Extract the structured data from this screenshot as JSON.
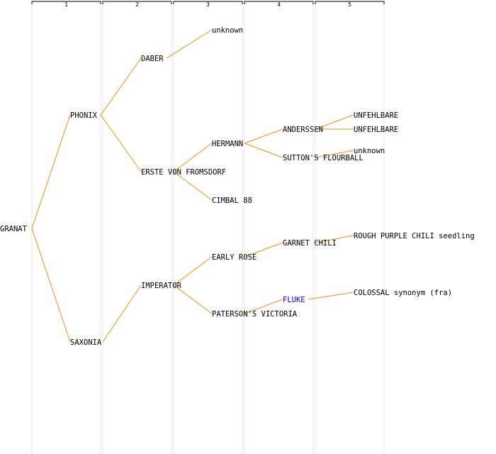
{
  "colors": {
    "edge": "#f08c1e",
    "text": "#000000",
    "highlight": "#0000cc",
    "guide": "#e6e6e6",
    "header_line": "#000000"
  },
  "generations": [
    "1",
    "2",
    "3",
    "4",
    "5"
  ],
  "pedigree": {
    "name": "GRANAT",
    "parents": [
      {
        "name": "PHONIX",
        "parents": [
          {
            "name": "DABER",
            "parents": [
              {
                "name": "unknown"
              }
            ]
          },
          {
            "name": "ERSTE VON FROMSDORF",
            "parents": [
              {
                "name": "HERMANN",
                "parents": [
                  {
                    "name": "ANDERSSEN",
                    "parents": [
                      {
                        "name": "UNFEHLBARE"
                      },
                      {
                        "name": "UNFEHLBARE"
                      }
                    ]
                  },
                  {
                    "name": "SUTTON'S FLOURBALL",
                    "parents": [
                      {
                        "name": "unknown"
                      }
                    ]
                  }
                ]
              },
              {
                "name": "CIMBAL 88"
              }
            ]
          }
        ]
      },
      {
        "name": "SAXONIA",
        "parents": [
          {
            "name": "IMPERATOR",
            "parents": [
              {
                "name": "EARLY ROSE",
                "parents": [
                  {
                    "name": "GARNET CHILI",
                    "parents": [
                      {
                        "name": "ROUGH PURPLE CHILI seedling"
                      }
                    ]
                  }
                ]
              },
              {
                "name": "PATERSON'S VICTORIA",
                "parents": [
                  {
                    "name": "FLUKE",
                    "highlight": true,
                    "parents": [
                      {
                        "name": "COLOSSAL synonym (fra)"
                      }
                    ]
                  }
                ]
              }
            ]
          }
        ]
      }
    ]
  }
}
